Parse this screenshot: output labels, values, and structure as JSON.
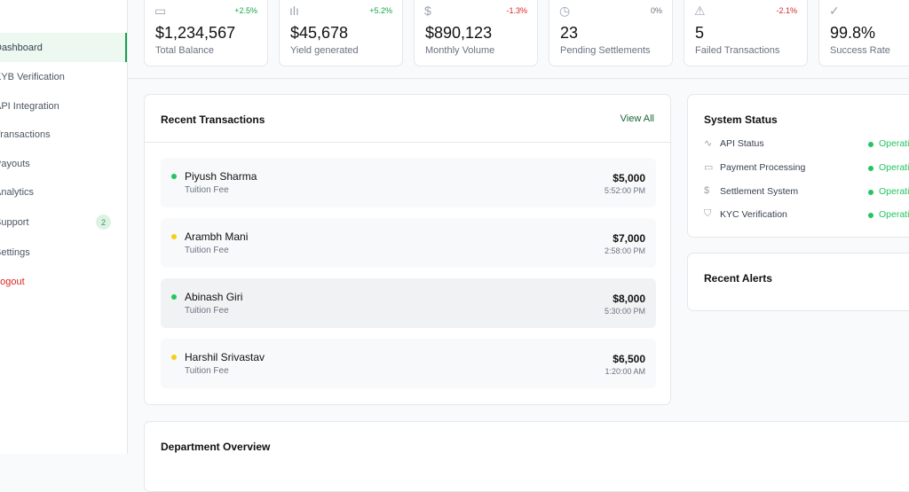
{
  "sidebar": {
    "items": [
      {
        "label": "Dashboard",
        "active": true
      },
      {
        "label": "KYB Verification"
      },
      {
        "label": "API Integration"
      },
      {
        "label": "Transactions"
      },
      {
        "label": "Payouts"
      },
      {
        "label": "Analytics"
      },
      {
        "label": "Support",
        "badge": "2"
      },
      {
        "label": "Settings"
      },
      {
        "label": "Logout"
      }
    ]
  },
  "stats": [
    {
      "icon": "wallet-icon",
      "change": "+2.5%",
      "value": "$1,234,567",
      "label": "Total Balance"
    },
    {
      "icon": "bar-chart-icon",
      "change": "+5.2%",
      "value": "$45,678",
      "label": "Yield generated"
    },
    {
      "icon": "dollar-icon",
      "change": "-1.3%",
      "value": "$890,123",
      "label": "Monthly Volume"
    },
    {
      "icon": "clock-icon",
      "change": "0%",
      "value": "23",
      "label": "Pending Settlements"
    },
    {
      "icon": "alert-triangle-icon",
      "change": "-2.1%",
      "value": "5",
      "label": "Failed Transactions"
    },
    {
      "icon": "check-circle-icon",
      "change": "",
      "value": "99.8%",
      "label": "Success Rate"
    }
  ],
  "recent_transactions": {
    "title": "Recent Transactions",
    "view_all": "View All",
    "items": [
      {
        "name": "Piyush Sharma",
        "type": "Tuition Fee",
        "amount": "$5,000",
        "time": "5:52:00 PM",
        "status_color": "#22c55e"
      },
      {
        "name": "Arambh Mani",
        "type": "Tuition Fee",
        "amount": "$7,000",
        "time": "2:58:00 PM",
        "status_color": "#facc15"
      },
      {
        "name": "Abinash Giri",
        "type": "Tuition Fee",
        "amount": "$8,000",
        "time": "5:30:00 PM",
        "status_color": "#22c55e"
      },
      {
        "name": "Harshil Srivastav",
        "type": "Tuition Fee",
        "amount": "$6,500",
        "time": "1:20:00 AM",
        "status_color": "#facc15"
      }
    ]
  },
  "system_status": {
    "title": "System Status",
    "items": [
      {
        "icon": "activity-icon",
        "label": "API Status",
        "status": "Operational"
      },
      {
        "icon": "credit-card-icon",
        "label": "Payment Processing",
        "status": "Operational"
      },
      {
        "icon": "dollar-icon",
        "label": "Settlement System",
        "status": "Operational"
      },
      {
        "icon": "shield-icon",
        "label": "KYC Verification",
        "status": "Operational"
      }
    ]
  },
  "recent_alerts": {
    "title": "Recent Alerts"
  },
  "department_overview": {
    "title": "Department Overview"
  }
}
